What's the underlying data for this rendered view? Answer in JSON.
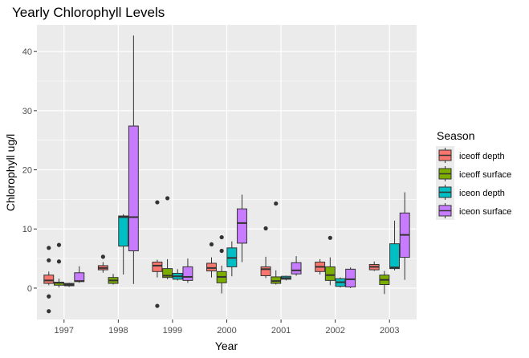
{
  "chart_data": {
    "type": "boxplot",
    "title": "Yearly Chlorophyll Levels",
    "xlabel": "Year",
    "ylabel": "Chlorophyll ug/l",
    "categories": [
      "1997",
      "1998",
      "1999",
      "2000",
      "2001",
      "2002",
      "2003"
    ],
    "ylim": [
      -5.3,
      44.5
    ],
    "yticks": [
      0,
      10,
      20,
      30,
      40
    ],
    "grid": true,
    "legend": {
      "title": "Season",
      "placement": "right",
      "entries": [
        "iceoff depth",
        "iceoff surface",
        "iceon depth",
        "iceon surface"
      ]
    },
    "colors": {
      "iceoff depth": "#F8766D",
      "iceoff surface": "#7CAE00",
      "iceon depth": "#00BFC4",
      "iceon surface": "#C77CFF",
      "panel": "#EBEBEB",
      "grid": "#FFFFFF"
    },
    "series": [
      {
        "name": "iceoff depth",
        "boxes": [
          {
            "year": "1997",
            "min": 0.5,
            "q1": 0.8,
            "median": 1.3,
            "q3": 2.2,
            "max": 2.8,
            "outliers": [
              6.8,
              4.7,
              -1.4,
              -3.9
            ]
          },
          {
            "year": "1998",
            "min": 2.6,
            "q1": 3.1,
            "median": 3.4,
            "q3": 3.8,
            "max": 4.4,
            "outliers": [
              5.3
            ]
          },
          {
            "year": "1999",
            "min": 1.8,
            "q1": 2.8,
            "median": 3.8,
            "q3": 4.4,
            "max": 4.8,
            "outliers": [
              14.5,
              -3.0
            ]
          },
          {
            "year": "2000",
            "min": 1.8,
            "q1": 2.9,
            "median": 3.4,
            "q3": 4.2,
            "max": 5.2,
            "outliers": [
              7.4
            ]
          },
          {
            "year": "2001",
            "min": 1.7,
            "q1": 2.1,
            "median": 3.2,
            "q3": 3.6,
            "max": 5.3,
            "outliers": [
              10.1
            ]
          },
          {
            "year": "2002",
            "min": 2.3,
            "q1": 2.8,
            "median": 3.6,
            "q3": 4.4,
            "max": 4.9,
            "outliers": []
          },
          {
            "year": "2003",
            "min": 2.9,
            "q1": 3.1,
            "median": 3.6,
            "q3": 4.0,
            "max": 4.5,
            "outliers": []
          }
        ]
      },
      {
        "name": "iceoff surface",
        "boxes": [
          {
            "year": "1997",
            "min": 0.1,
            "q1": 0.5,
            "median": 0.9,
            "q3": 1.0,
            "max": 1.6,
            "outliers": [
              7.3,
              4.5
            ]
          },
          {
            "year": "1998",
            "min": 0.6,
            "q1": 0.8,
            "median": 1.3,
            "q3": 1.8,
            "max": 2.4,
            "outliers": []
          },
          {
            "year": "1999",
            "min": 1.5,
            "q1": 1.8,
            "median": 2.1,
            "q3": 3.3,
            "max": 4.9,
            "outliers": [
              15.2
            ]
          },
          {
            "year": "2000",
            "min": -0.9,
            "q1": 0.9,
            "median": 1.9,
            "q3": 2.8,
            "max": 3.8,
            "outliers": [
              8.6,
              6.3
            ]
          },
          {
            "year": "2001",
            "min": 0.6,
            "q1": 0.8,
            "median": 1.2,
            "q3": 1.9,
            "max": 3.0,
            "outliers": [
              14.3
            ]
          },
          {
            "year": "2002",
            "min": 0.5,
            "q1": 1.3,
            "median": 2.2,
            "q3": 3.6,
            "max": 5.2,
            "outliers": [
              8.5
            ]
          },
          {
            "year": "2003",
            "min": -1.0,
            "q1": 0.6,
            "median": 1.4,
            "q3": 2.2,
            "max": 2.9,
            "outliers": []
          }
        ]
      },
      {
        "name": "iceon depth",
        "boxes": [
          {
            "year": "1997",
            "min": 0.2,
            "q1": 0.4,
            "median": 0.6,
            "q3": 0.8,
            "max": 0.9,
            "outliers": []
          },
          {
            "year": "1998",
            "min": 2.3,
            "q1": 7.1,
            "median": 12.0,
            "q3": 12.2,
            "max": 12.5,
            "outliers": []
          },
          {
            "year": "1999",
            "min": 1.3,
            "q1": 1.5,
            "median": 2.0,
            "q3": 2.5,
            "max": 3.2,
            "outliers": []
          },
          {
            "year": "2000",
            "min": 2.0,
            "q1": 3.6,
            "median": 5.1,
            "q3": 6.8,
            "max": 7.9,
            "outliers": []
          },
          {
            "year": "2001",
            "min": 1.3,
            "q1": 1.5,
            "median": 1.7,
            "q3": 2.0,
            "max": 2.1,
            "outliers": []
          },
          {
            "year": "2002",
            "min": 0.1,
            "q1": 0.3,
            "median": 1.0,
            "q3": 1.6,
            "max": 1.8,
            "outliers": []
          },
          {
            "year": "2003",
            "min": 3.0,
            "q1": 3.3,
            "median": 3.5,
            "q3": 7.5,
            "max": 11.4,
            "outliers": []
          }
        ]
      },
      {
        "name": "iceon surface",
        "boxes": [
          {
            "year": "1997",
            "min": 0.9,
            "q1": 1.1,
            "median": 1.2,
            "q3": 2.6,
            "max": 3.7,
            "outliers": []
          },
          {
            "year": "1998",
            "min": 0.7,
            "q1": 6.3,
            "median": 12.0,
            "q3": 27.4,
            "max": 42.7,
            "outliers": []
          },
          {
            "year": "1999",
            "min": 0.9,
            "q1": 1.3,
            "median": 1.9,
            "q3": 3.6,
            "max": 5.0,
            "outliers": []
          },
          {
            "year": "2000",
            "min": 4.4,
            "q1": 7.6,
            "median": 11.0,
            "q3": 13.4,
            "max": 15.8,
            "outliers": []
          },
          {
            "year": "2001",
            "min": 2.1,
            "q1": 2.4,
            "median": 3.0,
            "q3": 4.3,
            "max": 5.4,
            "outliers": []
          },
          {
            "year": "2002",
            "min": 0.0,
            "q1": 0.2,
            "median": 1.5,
            "q3": 3.2,
            "max": 3.5,
            "outliers": []
          },
          {
            "year": "2003",
            "min": 1.4,
            "q1": 5.2,
            "median": 9.0,
            "q3": 12.7,
            "max": 16.2,
            "outliers": []
          }
        ]
      }
    ]
  }
}
